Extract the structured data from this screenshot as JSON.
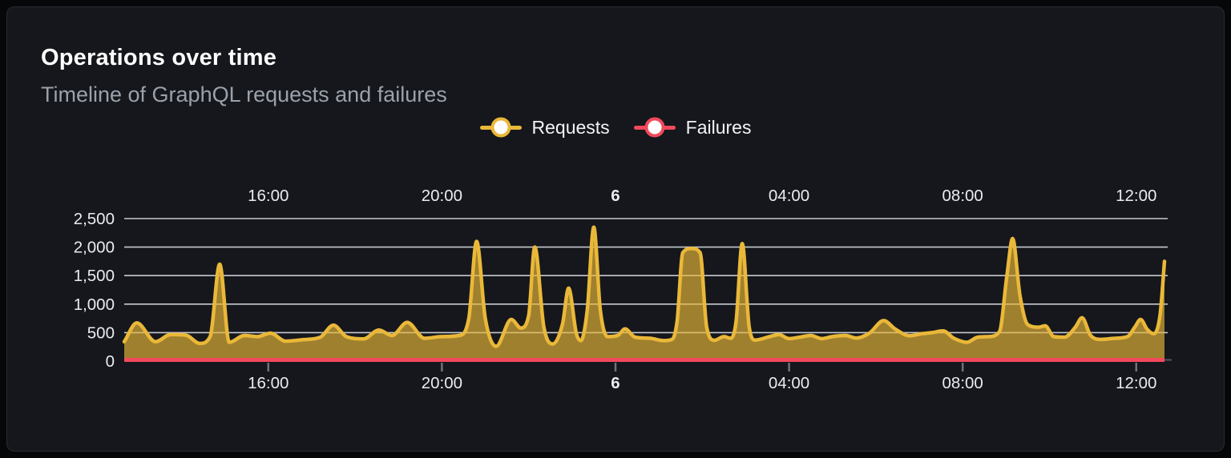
{
  "panel": {
    "title": "Operations over time",
    "subtitle": "Timeline of GraphQL requests and failures"
  },
  "legend": {
    "items": [
      {
        "label": "Requests",
        "color": "#EAB839"
      },
      {
        "label": "Failures",
        "color": "#F2495C"
      }
    ]
  },
  "colors": {
    "requests": "#EAB839",
    "failures": "#F2495C",
    "grid_line": "#dadde4",
    "axis_text": "#e9ebef"
  },
  "chart_data": {
    "type": "area",
    "title": "Operations over time",
    "subtitle": "Timeline of GraphQL requests and failures",
    "legend_position": "top-center",
    "x_axis": {
      "type": "time",
      "domain_hours": [
        12.68,
        36.73
      ],
      "mirrored_top_and_bottom": true,
      "ticks": [
        {
          "hour": 16,
          "label": "16:00",
          "bold": false
        },
        {
          "hour": 20,
          "label": "20:00",
          "bold": false
        },
        {
          "hour": 24,
          "label": "6",
          "bold": true
        },
        {
          "hour": 28,
          "label": "04:00",
          "bold": false
        },
        {
          "hour": 32,
          "label": "08:00",
          "bold": false
        },
        {
          "hour": 36,
          "label": "12:00",
          "bold": false
        }
      ]
    },
    "y_axis": {
      "domain": [
        0,
        2650
      ],
      "grid": true,
      "ticks": [
        {
          "value": 0,
          "label": "0"
        },
        {
          "value": 500,
          "label": "500"
        },
        {
          "value": 1000,
          "label": "1,000"
        },
        {
          "value": 1500,
          "label": "1,500"
        },
        {
          "value": 2000,
          "label": "2,000"
        },
        {
          "value": 2500,
          "label": "2,500"
        }
      ]
    },
    "series": [
      {
        "name": "Requests",
        "color": "#EAB839",
        "style": "area",
        "fill_opacity": 0.65,
        "points": [
          [
            12.68,
            340
          ],
          [
            12.97,
            670
          ],
          [
            13.4,
            340
          ],
          [
            13.75,
            465
          ],
          [
            14.1,
            455
          ],
          [
            14.42,
            310
          ],
          [
            14.66,
            430
          ],
          [
            14.88,
            1700
          ],
          [
            15.1,
            330
          ],
          [
            15.45,
            450
          ],
          [
            15.75,
            430
          ],
          [
            16.05,
            490
          ],
          [
            16.4,
            350
          ],
          [
            16.8,
            375
          ],
          [
            17.2,
            420
          ],
          [
            17.5,
            630
          ],
          [
            17.8,
            430
          ],
          [
            18.2,
            390
          ],
          [
            18.55,
            545
          ],
          [
            18.85,
            450
          ],
          [
            19.2,
            680
          ],
          [
            19.6,
            400
          ],
          [
            20.0,
            430
          ],
          [
            20.4,
            450
          ],
          [
            20.62,
            750
          ],
          [
            20.8,
            2100
          ],
          [
            21.0,
            750
          ],
          [
            21.25,
            260
          ],
          [
            21.6,
            730
          ],
          [
            21.82,
            580
          ],
          [
            22.0,
            800
          ],
          [
            22.14,
            2000
          ],
          [
            22.35,
            600
          ],
          [
            22.55,
            300
          ],
          [
            22.78,
            650
          ],
          [
            22.92,
            1280
          ],
          [
            23.1,
            480
          ],
          [
            23.2,
            360
          ],
          [
            23.35,
            900
          ],
          [
            23.5,
            2350
          ],
          [
            23.65,
            900
          ],
          [
            23.82,
            430
          ],
          [
            24.05,
            450
          ],
          [
            24.22,
            565
          ],
          [
            24.45,
            420
          ],
          [
            24.8,
            400
          ],
          [
            25.1,
            360
          ],
          [
            25.3,
            380
          ],
          [
            25.42,
            700
          ],
          [
            25.55,
            1900
          ],
          [
            25.75,
            1975
          ],
          [
            25.95,
            1900
          ],
          [
            26.1,
            600
          ],
          [
            26.28,
            365
          ],
          [
            26.5,
            430
          ],
          [
            26.65,
            400
          ],
          [
            26.78,
            700
          ],
          [
            26.92,
            2060
          ],
          [
            27.08,
            600
          ],
          [
            27.22,
            370
          ],
          [
            27.55,
            430
          ],
          [
            27.77,
            465
          ],
          [
            28.0,
            395
          ],
          [
            28.25,
            420
          ],
          [
            28.5,
            450
          ],
          [
            28.75,
            395
          ],
          [
            29.0,
            430
          ],
          [
            29.3,
            450
          ],
          [
            29.55,
            405
          ],
          [
            29.85,
            490
          ],
          [
            30.18,
            710
          ],
          [
            30.45,
            560
          ],
          [
            30.78,
            445
          ],
          [
            31.05,
            480
          ],
          [
            31.3,
            500
          ],
          [
            31.55,
            530
          ],
          [
            31.8,
            400
          ],
          [
            32.1,
            330
          ],
          [
            32.35,
            420
          ],
          [
            32.6,
            430
          ],
          [
            32.85,
            520
          ],
          [
            33.02,
            1500
          ],
          [
            33.15,
            2150
          ],
          [
            33.32,
            1150
          ],
          [
            33.5,
            640
          ],
          [
            33.75,
            595
          ],
          [
            33.9,
            620
          ],
          [
            34.1,
            430
          ],
          [
            34.35,
            420
          ],
          [
            34.6,
            600
          ],
          [
            34.75,
            760
          ],
          [
            34.95,
            450
          ],
          [
            35.2,
            380
          ],
          [
            35.5,
            400
          ],
          [
            35.8,
            430
          ],
          [
            35.97,
            600
          ],
          [
            36.1,
            730
          ],
          [
            36.25,
            560
          ],
          [
            36.4,
            480
          ],
          [
            36.55,
            820
          ],
          [
            36.65,
            1750
          ]
        ]
      },
      {
        "name": "Failures",
        "color": "#F2495C",
        "style": "line",
        "points": [
          [
            12.68,
            0
          ],
          [
            36.65,
            0
          ]
        ]
      }
    ]
  }
}
